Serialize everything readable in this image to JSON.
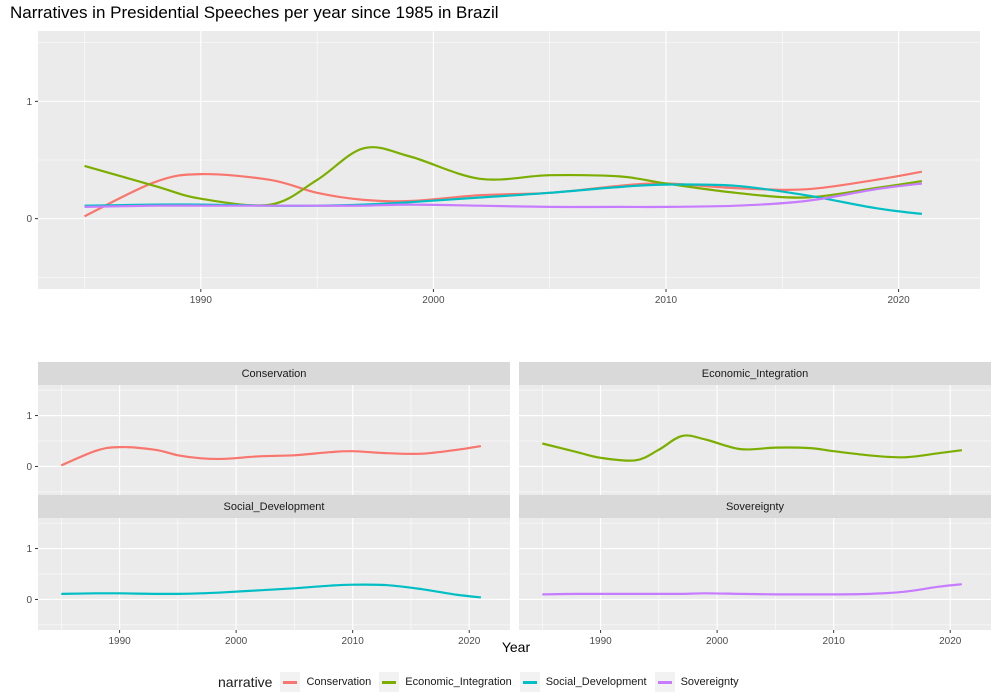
{
  "title": "Narratives in Presidential Speeches per year since 1985 in Brazil",
  "legend": {
    "title": "narrative",
    "items": [
      {
        "label": "Conservation",
        "color": "#F8766D"
      },
      {
        "label": "Economic_Integration",
        "color": "#7CAE00"
      },
      {
        "label": "Social_Development",
        "color": "#00BFC4"
      },
      {
        "label": "Sovereignty",
        "color": "#C77CFF"
      }
    ]
  },
  "chart_data": [
    {
      "type": "line",
      "title": "Narratives in Presidential Speeches per year since 1985 in Brazil",
      "xlabel": "",
      "ylabel": "",
      "xlim": [
        1983,
        2023.5
      ],
      "ylim": [
        -0.6,
        1.6
      ],
      "x_ticks": [
        "1990",
        "2000",
        "2010",
        "2020"
      ],
      "y_ticks": [
        "0",
        "1"
      ],
      "grid": true,
      "x": [
        1985,
        1988,
        1990,
        1993,
        1995,
        1997,
        1999,
        2002,
        2005,
        2008,
        2010,
        2013,
        2016,
        2019,
        2021
      ],
      "series": [
        {
          "name": "Conservation",
          "values": [
            0.02,
            0.31,
            0.38,
            0.33,
            0.22,
            0.16,
            0.15,
            0.2,
            0.22,
            0.28,
            0.3,
            0.26,
            0.25,
            0.33,
            0.4
          ]
        },
        {
          "name": "Economic_Integration",
          "values": [
            0.45,
            0.28,
            0.17,
            0.12,
            0.33,
            0.6,
            0.53,
            0.34,
            0.37,
            0.36,
            0.3,
            0.22,
            0.18,
            0.26,
            0.32
          ]
        },
        {
          "name": "Social_Development",
          "values": [
            0.11,
            0.12,
            0.12,
            0.11,
            0.11,
            0.12,
            0.14,
            0.18,
            0.22,
            0.27,
            0.29,
            0.28,
            0.2,
            0.09,
            0.04
          ]
        },
        {
          "name": "Sovereignty",
          "values": [
            0.1,
            0.11,
            0.11,
            0.11,
            0.11,
            0.11,
            0.12,
            0.11,
            0.1,
            0.1,
            0.1,
            0.11,
            0.15,
            0.25,
            0.3
          ]
        }
      ]
    },
    {
      "type": "line",
      "xlabel": "Year",
      "ylabel": "",
      "facets": [
        "Conservation",
        "Economic_Integration",
        "Social_Development",
        "Sovereignty"
      ],
      "xlim": [
        1983,
        2023.5
      ],
      "ylim": [
        -0.6,
        1.6
      ],
      "x_ticks": [
        "1990",
        "2000",
        "2010",
        "2020"
      ],
      "y_ticks": [
        "0",
        "1"
      ],
      "grid": true,
      "legend_position": "bottom"
    }
  ]
}
